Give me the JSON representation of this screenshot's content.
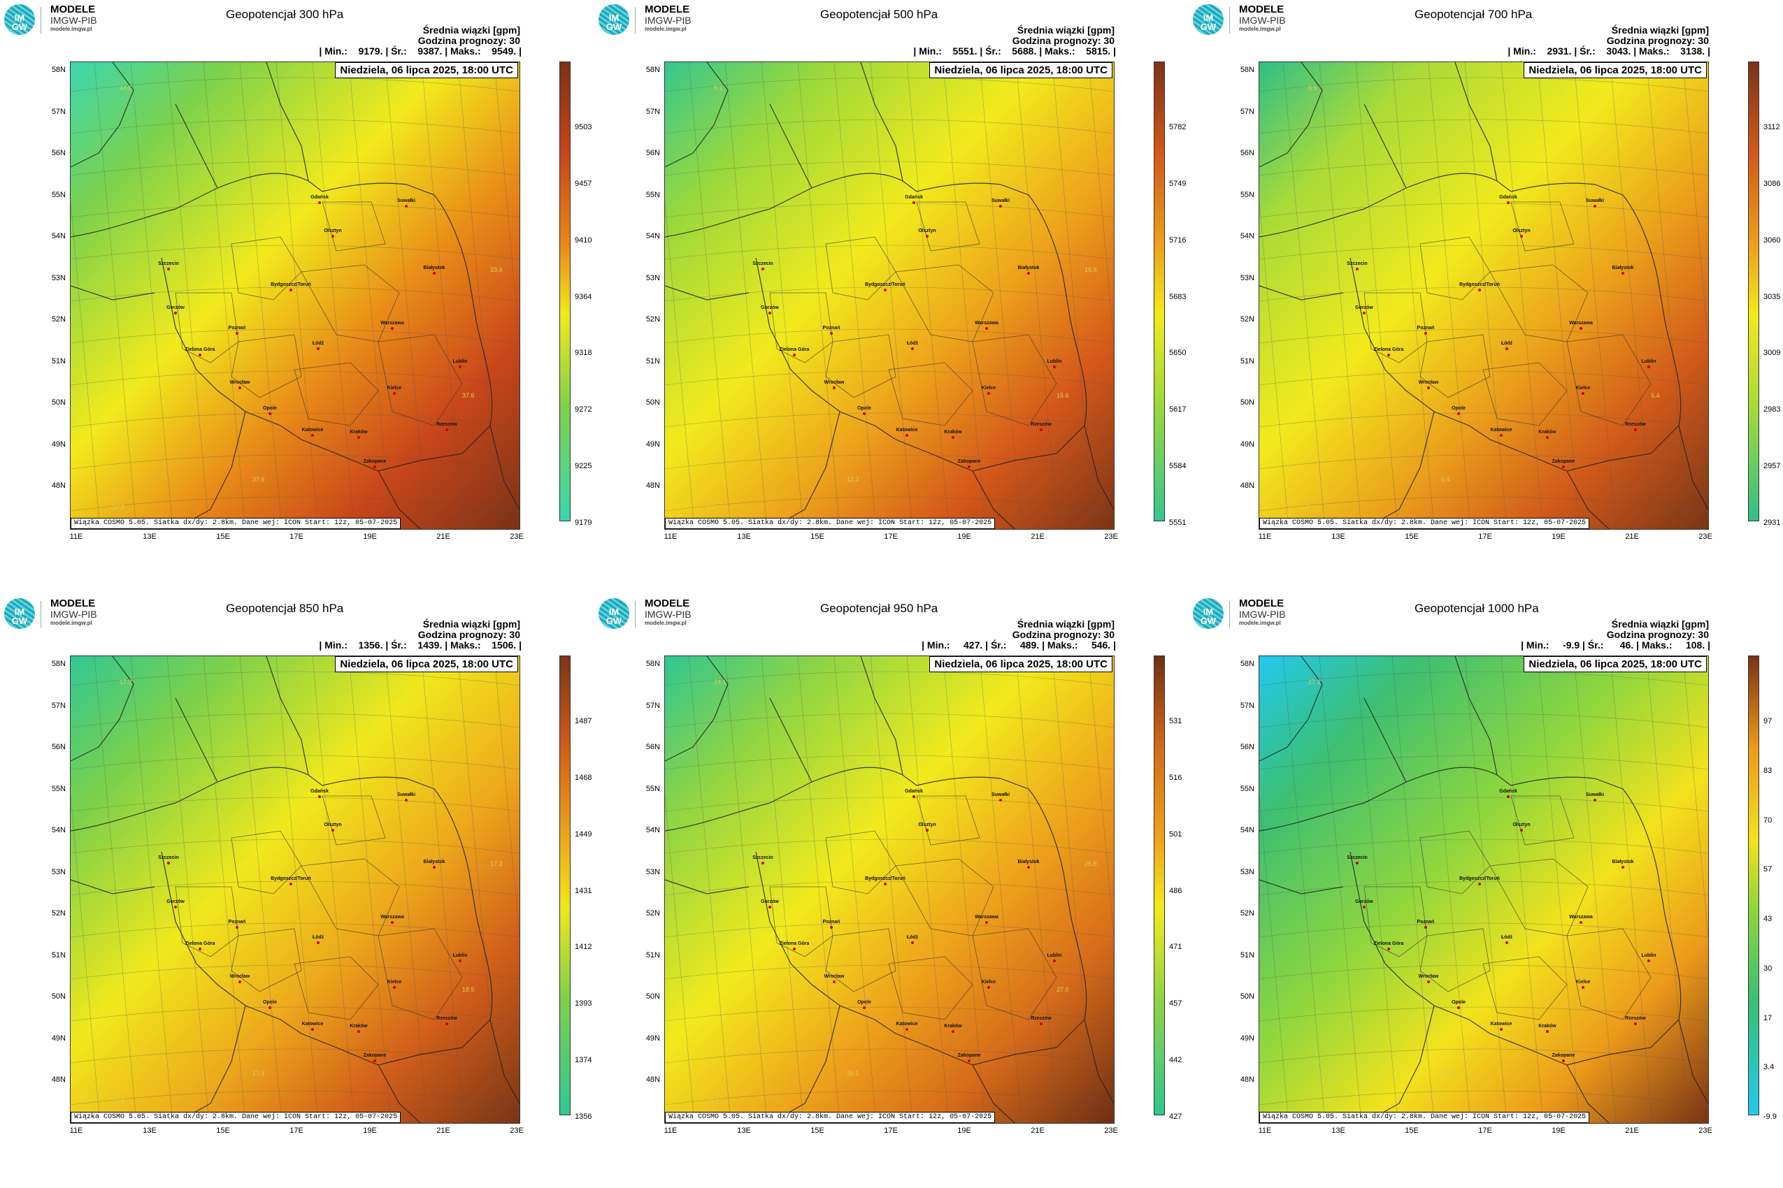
{
  "logo": {
    "name": "MODELE",
    "org": "IMGW-PIB",
    "url": "modele.imgw.pl",
    "mark_top": "IM",
    "mark_bottom": "GW"
  },
  "common": {
    "unit_label": "Średnia wiązki [gpm]",
    "hour_label": "Godzina prognozy: 30",
    "date_label": "Niedziela, 06 lipca 2025, 18:00 UTC",
    "footer": "Wiązka COSMO 5.05. Siatka dx/dy: 2.8km. Dane wej: ICON Start: 12z, 05-07-2025",
    "lat_labels": [
      "58N",
      "57N",
      "56N",
      "55N",
      "54N",
      "53N",
      "52N",
      "51N",
      "50N",
      "49N",
      "48N"
    ],
    "lon_labels": [
      "11E",
      "13E",
      "15E",
      "17E",
      "19E",
      "21E",
      "23E"
    ],
    "cities": [
      "Gdańsk",
      "Olsztyn",
      "Suwałki",
      "Białystok",
      "Szczecin",
      "Bydgoszcz/Toruń",
      "Gorzów",
      "Poznań",
      "Warszawa",
      "Łódź",
      "Zielona Góra",
      "Lublin",
      "Wrocław",
      "Kielce",
      "Opole",
      "Katowice",
      "Kraków",
      "Rzeszów",
      "Zakopane"
    ]
  },
  "panels": [
    {
      "title": "Geopotencjał 300 hPa",
      "stats": "| Min.:    9179. | Śr.:    9387. | Maks.:    9549. |",
      "colorbar": [
        "9503",
        "9457",
        "9410",
        "9364",
        "9318",
        "9272",
        "9225",
        "9179"
      ],
      "colors": {
        "c1": "#3ad6b0",
        "c2": "#7fd24a",
        "c3": "#f2ea1c",
        "c4": "#e88a18",
        "c5": "#c8461a",
        "c6": "#7a3216"
      },
      "contour_labels": [
        "44.6",
        "37.6",
        "37.6",
        "37.6",
        "33.4"
      ]
    },
    {
      "title": "Geopotencjał 500 hPa",
      "stats": "| Min.:    5551. | Śr.:    5688. | Maks.:    5815. |",
      "colorbar": [
        "5782",
        "5749",
        "5716",
        "5683",
        "5650",
        "5617",
        "5584",
        "5551"
      ],
      "colors": {
        "c1": "#35c78f",
        "c2": "#9ad83c",
        "c3": "#f2ea1c",
        "c4": "#eda21b",
        "c5": "#d4581a",
        "c6": "#7c3416"
      },
      "contour_labels": [
        "5.1",
        "4.4",
        "12.3",
        "15.6",
        "16.9"
      ]
    },
    {
      "title": "Geopotencjał 700 hPa",
      "stats": "| Min.:    2931. | Śr.:    3043. | Maks.:    3138. |",
      "colorbar": [
        "3112",
        "3086",
        "3060",
        "3035",
        "3009",
        "2983",
        "2957",
        "2931"
      ],
      "colors": {
        "c1": "#2fbf88",
        "c2": "#a8da38",
        "c3": "#f2ea1c",
        "c4": "#eba01b",
        "c5": "#d15a1a",
        "c6": "#7a3516"
      },
      "contour_labels": [
        "9.6",
        "5.4",
        "6.4",
        "5.4"
      ]
    },
    {
      "title": "Geopotencjał 850 hPa",
      "stats": "| Min.:    1356. | Śr.:    1439. | Maks.:    1506. |",
      "colorbar": [
        "1487",
        "1468",
        "1449",
        "1431",
        "1412",
        "1393",
        "1374",
        "1356"
      ],
      "colors": {
        "c1": "#30c895",
        "c2": "#7cd04a",
        "c3": "#f0e81c",
        "c4": "#eda81b",
        "c5": "#d15e1a",
        "c6": "#7a3516"
      },
      "contour_labels": [
        "17.3",
        "13.6",
        "17.3",
        "18.5",
        "17.3"
      ]
    },
    {
      "title": "Geopotencjał 950 hPa",
      "stats": "| Min.:     427. | Śr.:     489. | Maks.:     546. |",
      "colorbar": [
        "531",
        "516",
        "501",
        "486",
        "471",
        "457",
        "442",
        "427"
      ],
      "colors": {
        "c1": "#2fc693",
        "c2": "#8ed444",
        "c3": "#f2ea1c",
        "c4": "#eea41b",
        "c5": "#d66a1a",
        "c6": "#6e2f14"
      },
      "contour_labels": [
        "24.1",
        "23.2",
        "25.5",
        "27.0",
        "25.8"
      ]
    },
    {
      "title": "Geopotencjał 1000 hPa",
      "stats": "| Min.:     -9.9 | Śr.:      46. | Maks.:     108. |",
      "colorbar": [
        "97",
        "83",
        "70",
        "57",
        "43",
        "30",
        "17",
        "3.4",
        "-9.9"
      ],
      "colors": {
        "c1": "#22c8f0",
        "c2": "#3cbf72",
        "c3": "#8fd63e",
        "c4": "#f2e21c",
        "c5": "#ec9a1b",
        "c6": "#7a3314"
      },
      "contour_labels": [
        "27.3",
        "25.1",
        "27.3"
      ]
    }
  ]
}
